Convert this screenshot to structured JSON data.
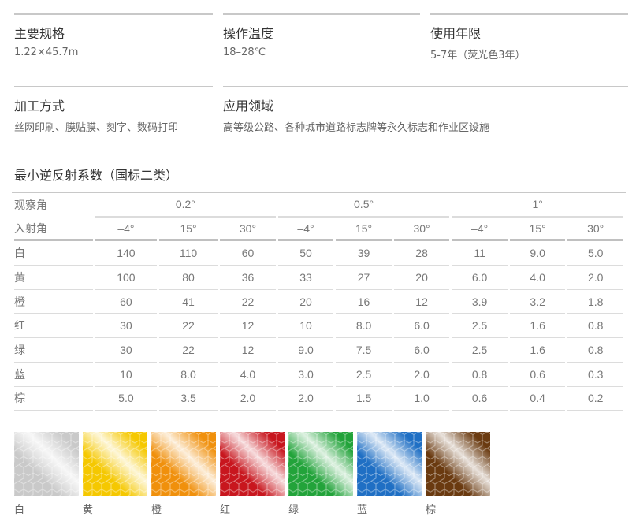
{
  "specs": [
    {
      "title": "主要规格",
      "value": "1.22×45.7m"
    },
    {
      "title": "操作温度",
      "value": "18–28℃"
    },
    {
      "title": "使用年限",
      "value": "5-7年（荧光色3年）"
    },
    {
      "title": "加工方式",
      "value": "丝网印刷、膜贴膜、刻字、数码打印"
    },
    {
      "title": "应用领域",
      "value": "高等级公路、各种城市道路标志牌等永久标志和作业区设施"
    }
  ],
  "table": {
    "title": "最小逆反射系数（国标二类）",
    "observation_label": "观察角",
    "observation_angles": [
      "0.2°",
      "0.5°",
      "1°"
    ],
    "entrance_label": "入射角",
    "entrance_angles": [
      "–4°",
      "15°",
      "30°",
      "–4°",
      "15°",
      "30°",
      "–4°",
      "15°",
      "30°"
    ],
    "rows": [
      {
        "color": "白",
        "values": [
          "140",
          "110",
          "60",
          "50",
          "39",
          "28",
          "11",
          "9.0",
          "5.0"
        ]
      },
      {
        "color": "黄",
        "values": [
          "100",
          "80",
          "36",
          "33",
          "27",
          "20",
          "6.0",
          "4.0",
          "2.0"
        ]
      },
      {
        "color": "橙",
        "values": [
          "60",
          "41",
          "22",
          "20",
          "16",
          "12",
          "3.9",
          "3.2",
          "1.8"
        ]
      },
      {
        "color": "红",
        "values": [
          "30",
          "22",
          "12",
          "10",
          "8.0",
          "6.0",
          "2.5",
          "1.6",
          "0.8"
        ]
      },
      {
        "color": "绿",
        "values": [
          "30",
          "22",
          "12",
          "9.0",
          "7.5",
          "6.0",
          "2.5",
          "1.6",
          "0.8"
        ]
      },
      {
        "color": "蓝",
        "values": [
          "10",
          "8.0",
          "4.0",
          "3.0",
          "2.5",
          "2.0",
          "0.8",
          "0.6",
          "0.3"
        ]
      },
      {
        "color": "棕",
        "values": [
          "5.0",
          "3.5",
          "2.0",
          "2.0",
          "1.5",
          "1.0",
          "0.6",
          "0.4",
          "0.2"
        ]
      }
    ]
  },
  "swatches": [
    {
      "label": "白",
      "hex": "#c9c9c9"
    },
    {
      "label": "黄",
      "hex": "#f5c800"
    },
    {
      "label": "橙",
      "hex": "#f0900c"
    },
    {
      "label": "红",
      "hex": "#c8161e"
    },
    {
      "label": "绿",
      "hex": "#22a33a"
    },
    {
      "label": "蓝",
      "hex": "#1f6fc4"
    },
    {
      "label": "棕",
      "hex": "#6a3a10"
    }
  ]
}
